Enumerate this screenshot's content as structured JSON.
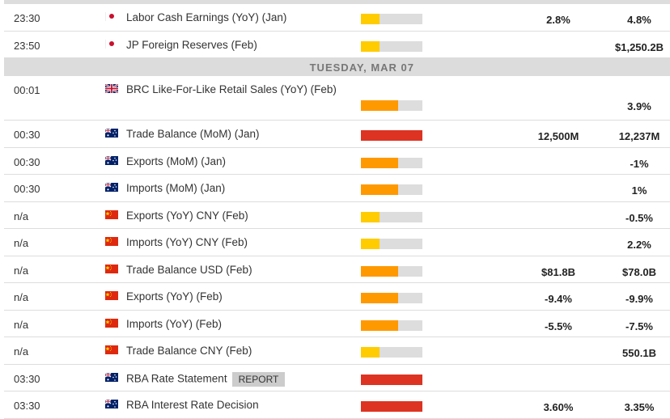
{
  "impact_colors": {
    "low": "#ffcc00",
    "medium": "#ff9900",
    "high": "#dd3322"
  },
  "impact_levels": {
    "low": 0.3,
    "medium": 0.6,
    "high": 1.0
  },
  "groups": [
    {
      "day": "",
      "events": [
        {
          "time": "23:30",
          "country": "JP",
          "flag": "japan-flag-icon",
          "event": "Labor Cash Earnings (YoY) (Jan)",
          "impact": "low",
          "forecast": "2.8%",
          "previous": "4.8%"
        },
        {
          "time": "23:50",
          "country": "JP",
          "flag": "japan-flag-icon",
          "event": "JP Foreign Reserves (Feb)",
          "impact": "low",
          "forecast": "",
          "previous": "$1,250.2B"
        }
      ]
    },
    {
      "day": "TUESDAY, MAR 07",
      "events": [
        {
          "time": "00:01",
          "country": "GB",
          "flag": "uk-flag-icon",
          "event": "BRC Like-For-Like Retail Sales (YoY) (Feb)",
          "impact": "medium",
          "forecast": "",
          "previous": "3.9%",
          "tall": true
        },
        {
          "time": "00:30",
          "country": "AU",
          "flag": "australia-flag-icon",
          "event": "Trade Balance (MoM) (Jan)",
          "impact": "high",
          "forecast": "12,500M",
          "previous": "12,237M"
        },
        {
          "time": "00:30",
          "country": "AU",
          "flag": "australia-flag-icon",
          "event": "Exports (MoM) (Jan)",
          "impact": "medium",
          "forecast": "",
          "previous": "-1%"
        },
        {
          "time": "00:30",
          "country": "AU",
          "flag": "australia-flag-icon",
          "event": "Imports (MoM) (Jan)",
          "impact": "medium",
          "forecast": "",
          "previous": "1%"
        },
        {
          "time": "n/a",
          "country": "CN",
          "flag": "china-flag-icon",
          "event": "Exports (YoY) CNY (Feb)",
          "impact": "low",
          "forecast": "",
          "previous": "-0.5%"
        },
        {
          "time": "n/a",
          "country": "CN",
          "flag": "china-flag-icon",
          "event": "Imports (YoY) CNY (Feb)",
          "impact": "low",
          "forecast": "",
          "previous": "2.2%"
        },
        {
          "time": "n/a",
          "country": "CN",
          "flag": "china-flag-icon",
          "event": "Trade Balance USD (Feb)",
          "impact": "medium",
          "forecast": "$81.8B",
          "previous": "$78.0B"
        },
        {
          "time": "n/a",
          "country": "CN",
          "flag": "china-flag-icon",
          "event": "Exports (YoY) (Feb)",
          "impact": "medium",
          "forecast": "-9.4%",
          "previous": "-9.9%"
        },
        {
          "time": "n/a",
          "country": "CN",
          "flag": "china-flag-icon",
          "event": "Imports (YoY) (Feb)",
          "impact": "medium",
          "forecast": "-5.5%",
          "previous": "-7.5%"
        },
        {
          "time": "n/a",
          "country": "CN",
          "flag": "china-flag-icon",
          "event": "Trade Balance CNY (Feb)",
          "impact": "low",
          "forecast": "",
          "previous": "550.1B"
        },
        {
          "time": "03:30",
          "country": "AU",
          "flag": "australia-flag-icon",
          "event": "RBA Rate Statement",
          "report": "REPORT",
          "impact": "high",
          "forecast": "",
          "previous": ""
        },
        {
          "time": "03:30",
          "country": "AU",
          "flag": "australia-flag-icon",
          "event": "RBA Interest Rate Decision",
          "impact": "high",
          "forecast": "3.60%",
          "previous": "3.35%"
        }
      ]
    }
  ]
}
